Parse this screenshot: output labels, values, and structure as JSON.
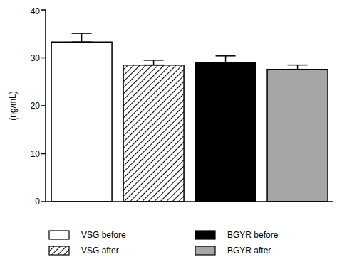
{
  "chart_data": {
    "type": "bar",
    "y_label": "(ng/mL)",
    "categories": [
      "VSG before",
      "VSG after",
      "BGYR before",
      "BGYR after"
    ],
    "values": [
      33.3,
      28.5,
      29.0,
      27.6
    ],
    "errors": [
      1.8,
      1.0,
      1.4,
      0.9
    ],
    "colors": [
      "#ffffff",
      "#ffffff",
      "#000000",
      "#a6a6a6"
    ],
    "ylim": [
      0,
      40
    ],
    "yticks": [
      0,
      10,
      20,
      30,
      40
    ],
    "grid": false,
    "legend": "bottom",
    "tick_labels": "y"
  }
}
